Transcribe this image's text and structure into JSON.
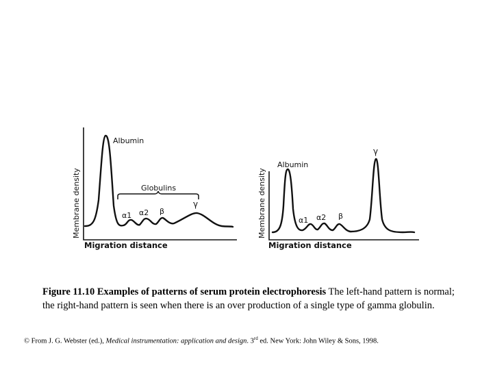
{
  "left_panel": {
    "ylabel": "Membrane density",
    "xlabel": "Migration distance",
    "peak_albumin": "Albumin",
    "bracket_label": "Globulins",
    "alpha1": "α1",
    "alpha2": "α2",
    "beta": "β",
    "gamma": "γ"
  },
  "right_panel": {
    "ylabel": "Membrane density",
    "xlabel": "Migration distance",
    "peak_albumin": "Albumin",
    "alpha1": "α1",
    "alpha2": "α2",
    "beta": "β",
    "gamma": "γ"
  },
  "caption": {
    "bold": "Figure 11.10 Examples of patterns of serum protein electrophoresis",
    "text": " The left-hand pattern is normal; the right-hand pattern is seen when there is an over production of a single type of gamma globulin."
  },
  "credit": {
    "prefix": "© From J. G. Webster (ed.), ",
    "title": "Medical instrumentation: application and design",
    "mid": ". 3",
    "sup": "rd",
    "suffix": " ed. New York: John Wiley & Sons, 1998."
  }
}
